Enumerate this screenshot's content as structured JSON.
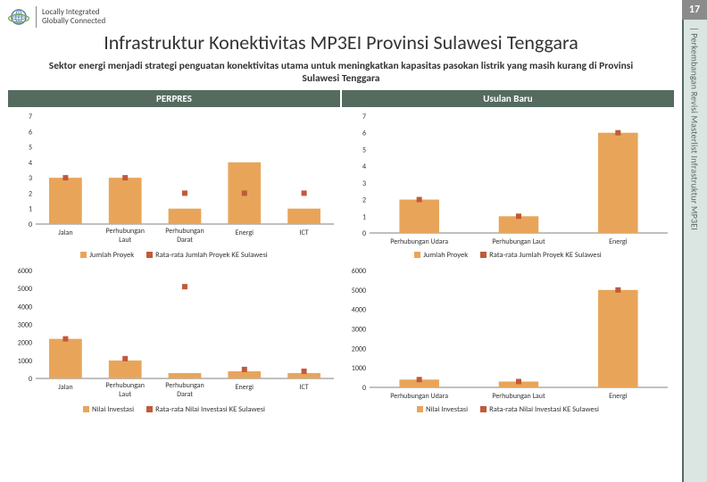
{
  "page_number": "17",
  "side_title": "| Perkembangan Revisi Masterlist Infrastruktur MP3EI",
  "logo": {
    "line1": "Locally Integrated",
    "line2": "Globally Connected"
  },
  "title": "Infrastruktur Konektivitas MP3EI Provinsi Sulawesi Tenggara",
  "subtitle": "Sektor energi menjadi strategi penguatan konektivitas utama untuk meningkatkan kapasitas pasokan listrik yang masih kurang di Provinsi Sulawesi Tenggara",
  "panels": {
    "left": "PERPRES",
    "right": "Usulan Baru"
  },
  "colors": {
    "bar": "#e8a55a",
    "marker": "#c05a3a",
    "grid": "#bfbfbf",
    "axis": "#808080",
    "panel_bg": "#ffffff"
  },
  "legends": {
    "top": {
      "a": "Jumlah Proyek",
      "b": "Rata-rata Jumlah Proyek KE Sulawesi"
    },
    "bottom": {
      "a": "Nilai Investasi",
      "b": "Rata-rata Nilai Investasi KE Sulawesi"
    }
  },
  "top_left": {
    "type": "bar+marker",
    "categories": [
      "Jalan",
      "Perhubungan Laut",
      "Perhubungan Darat",
      "Energi",
      "ICT"
    ],
    "bar_values": [
      3,
      3,
      1,
      4,
      1
    ],
    "marker_values": [
      3,
      3,
      2,
      2,
      2
    ],
    "ylim": [
      0,
      7
    ],
    "ytick_step": 1,
    "bar_width": 0.55
  },
  "top_right": {
    "type": "bar+marker",
    "categories": [
      "Perhubungan Udara",
      "Perhubungan Laut",
      "Energi"
    ],
    "bar_values": [
      2,
      1,
      6
    ],
    "marker_values": [
      2,
      1,
      6
    ],
    "ylim": [
      0,
      7
    ],
    "ytick_step": 1,
    "bar_width": 0.4
  },
  "bottom_left": {
    "type": "bar+marker",
    "categories": [
      "Jalan",
      "Perhubungan Laut",
      "Perhubungan Darat",
      "Energi",
      "ICT"
    ],
    "bar_values": [
      2200,
      1000,
      300,
      400,
      300
    ],
    "marker_values": [
      2200,
      1100,
      5100,
      500,
      400
    ],
    "ylim": [
      0,
      6000
    ],
    "ytick_step": 1000,
    "bar_width": 0.55
  },
  "bottom_right": {
    "type": "bar+marker",
    "categories": [
      "Perhubungan Udara",
      "Perhubungan Laut",
      "Energi"
    ],
    "bar_values": [
      400,
      300,
      5000
    ],
    "marker_values": [
      400,
      300,
      5000
    ],
    "ylim": [
      0,
      6000
    ],
    "ytick_step": 1000,
    "bar_width": 0.4
  }
}
